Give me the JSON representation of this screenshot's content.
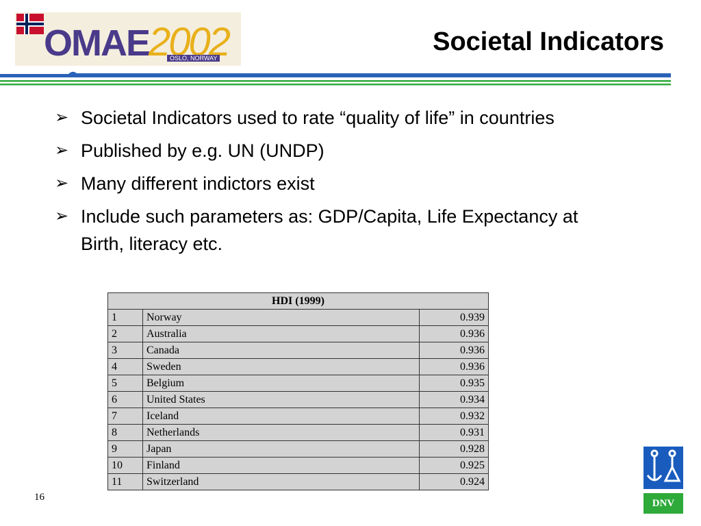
{
  "header": {
    "title": "Societal Indicators",
    "logo": {
      "name": "OMAE",
      "year": "2002",
      "place": "OSLO, NORWAY"
    }
  },
  "bullets": [
    "Societal Indicators used to rate “quality of life” in countries",
    "Published by e.g. UN (UNDP)",
    "Many different indictors exist",
    "Include such parameters as: GDP/Capita, Life Expectancy at Birth, literacy etc."
  ],
  "table": {
    "title": "HDI (1999)",
    "rows": [
      [
        "1",
        "Norway",
        "0.939"
      ],
      [
        "2",
        "Australia",
        "0.936"
      ],
      [
        "3",
        "Canada",
        "0.936"
      ],
      [
        "4",
        "Sweden",
        "0.936"
      ],
      [
        "5",
        "Belgium",
        "0.935"
      ],
      [
        "6",
        "United States",
        "0.934"
      ],
      [
        "7",
        "Iceland",
        "0.932"
      ],
      [
        "8",
        "Netherlands",
        "0.931"
      ],
      [
        "9",
        "Japan",
        "0.928"
      ],
      [
        "10",
        "Finland",
        "0.925"
      ],
      [
        "11",
        "Switzerland",
        "0.924"
      ]
    ]
  },
  "footer": {
    "page": "16",
    "brand": "DNV"
  }
}
